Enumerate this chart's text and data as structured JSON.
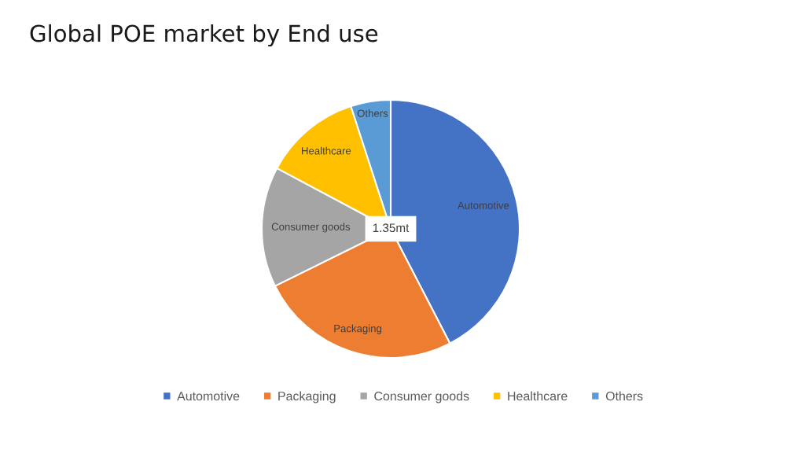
{
  "chart_data": {
    "type": "pie",
    "title": "Global POE market by End use",
    "categories": [
      "Automotive",
      "Packaging",
      "Consumer goods",
      "Healthcare",
      "Others"
    ],
    "values": [
      42.4,
      25.3,
      15.1,
      12.2,
      5.0
    ],
    "colors": [
      "#4472c4",
      "#ed7d31",
      "#a5a5a5",
      "#ffc000",
      "#5b9bd5"
    ],
    "value_labels": [
      "Automotive",
      "Packaging",
      "Consumer goods",
      "Healthcare",
      "Others"
    ],
    "legend": "bottom",
    "annotations": [
      "1.35mt"
    ]
  }
}
